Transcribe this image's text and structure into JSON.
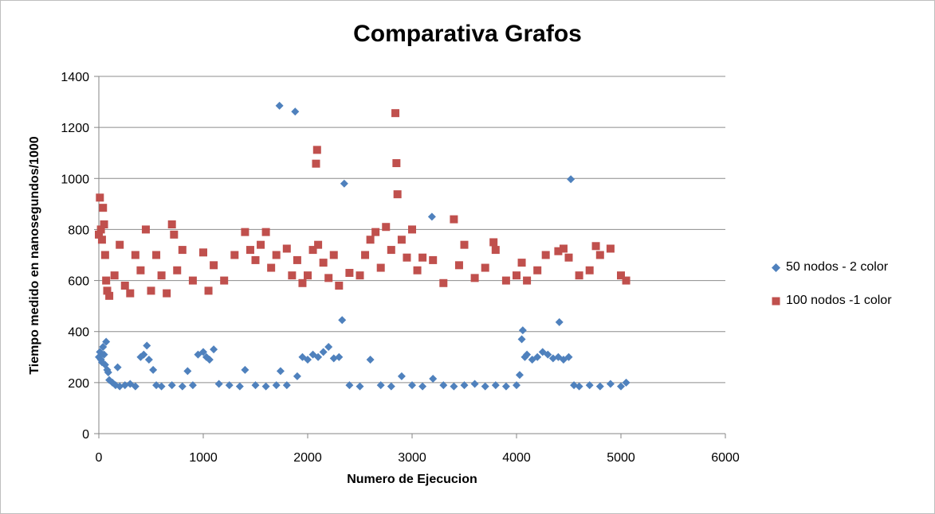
{
  "chart_data": {
    "type": "scatter",
    "title": "Comparativa Grafos",
    "xlabel": "Numero de Ejecucion",
    "ylabel": "Tiempo medido en nanosegundos/1000",
    "xlim": [
      0,
      6000
    ],
    "ylim": [
      0,
      1400
    ],
    "xticks": [
      0,
      1000,
      2000,
      3000,
      4000,
      5000,
      6000
    ],
    "yticks": [
      0,
      200,
      400,
      600,
      800,
      1000,
      1200,
      1400
    ],
    "grid": "horizontal",
    "legend_position": "right",
    "series": [
      {
        "name": "50 nodos - 2 color",
        "marker": "diamond",
        "color": "#4f81bd",
        "points": [
          [
            0,
            300
          ],
          [
            10,
            320
          ],
          [
            20,
            290
          ],
          [
            30,
            280
          ],
          [
            40,
            340
          ],
          [
            50,
            310
          ],
          [
            60,
            270
          ],
          [
            70,
            360
          ],
          [
            80,
            250
          ],
          [
            90,
            240
          ],
          [
            100,
            210
          ],
          [
            130,
            200
          ],
          [
            160,
            190
          ],
          [
            180,
            260
          ],
          [
            200,
            185
          ],
          [
            250,
            190
          ],
          [
            300,
            195
          ],
          [
            350,
            185
          ],
          [
            400,
            300
          ],
          [
            430,
            310
          ],
          [
            460,
            345
          ],
          [
            480,
            290
          ],
          [
            520,
            250
          ],
          [
            550,
            190
          ],
          [
            600,
            185
          ],
          [
            700,
            190
          ],
          [
            800,
            185
          ],
          [
            850,
            245
          ],
          [
            900,
            190
          ],
          [
            950,
            310
          ],
          [
            1000,
            320
          ],
          [
            1030,
            300
          ],
          [
            1060,
            290
          ],
          [
            1100,
            330
          ],
          [
            1150,
            195
          ],
          [
            1250,
            190
          ],
          [
            1350,
            185
          ],
          [
            1400,
            250
          ],
          [
            1500,
            190
          ],
          [
            1600,
            185
          ],
          [
            1700,
            190
          ],
          [
            1730,
            1285
          ],
          [
            1740,
            245
          ],
          [
            1800,
            190
          ],
          [
            1880,
            1262
          ],
          [
            1900,
            225
          ],
          [
            1950,
            300
          ],
          [
            2000,
            290
          ],
          [
            2050,
            310
          ],
          [
            2100,
            300
          ],
          [
            2150,
            320
          ],
          [
            2200,
            340
          ],
          [
            2250,
            295
          ],
          [
            2300,
            300
          ],
          [
            2330,
            445
          ],
          [
            2350,
            980
          ],
          [
            2400,
            190
          ],
          [
            2500,
            185
          ],
          [
            2600,
            290
          ],
          [
            2700,
            190
          ],
          [
            2800,
            185
          ],
          [
            2900,
            225
          ],
          [
            3000,
            190
          ],
          [
            3100,
            185
          ],
          [
            3190,
            850
          ],
          [
            3200,
            215
          ],
          [
            3300,
            190
          ],
          [
            3400,
            185
          ],
          [
            3500,
            190
          ],
          [
            3600,
            195
          ],
          [
            3700,
            185
          ],
          [
            3800,
            190
          ],
          [
            3900,
            185
          ],
          [
            4000,
            190
          ],
          [
            4030,
            230
          ],
          [
            4050,
            370
          ],
          [
            4060,
            405
          ],
          [
            4080,
            300
          ],
          [
            4100,
            310
          ],
          [
            4150,
            290
          ],
          [
            4200,
            300
          ],
          [
            4250,
            320
          ],
          [
            4300,
            310
          ],
          [
            4350,
            295
          ],
          [
            4400,
            300
          ],
          [
            4410,
            437
          ],
          [
            4450,
            290
          ],
          [
            4500,
            300
          ],
          [
            4520,
            997
          ],
          [
            4550,
            190
          ],
          [
            4600,
            185
          ],
          [
            4700,
            190
          ],
          [
            4800,
            185
          ],
          [
            4900,
            195
          ],
          [
            5000,
            185
          ],
          [
            5050,
            200
          ]
        ]
      },
      {
        "name": "100 nodos -1 color",
        "marker": "square",
        "color": "#c0504d",
        "points": [
          [
            0,
            780
          ],
          [
            10,
            925
          ],
          [
            20,
            800
          ],
          [
            30,
            760
          ],
          [
            40,
            885
          ],
          [
            50,
            820
          ],
          [
            60,
            700
          ],
          [
            70,
            600
          ],
          [
            80,
            560
          ],
          [
            100,
            540
          ],
          [
            150,
            620
          ],
          [
            200,
            740
          ],
          [
            250,
            580
          ],
          [
            300,
            550
          ],
          [
            350,
            700
          ],
          [
            400,
            640
          ],
          [
            450,
            800
          ],
          [
            500,
            560
          ],
          [
            550,
            700
          ],
          [
            600,
            620
          ],
          [
            650,
            550
          ],
          [
            700,
            820
          ],
          [
            720,
            780
          ],
          [
            750,
            640
          ],
          [
            800,
            720
          ],
          [
            900,
            600
          ],
          [
            1000,
            710
          ],
          [
            1050,
            560
          ],
          [
            1100,
            660
          ],
          [
            1200,
            600
          ],
          [
            1300,
            700
          ],
          [
            1400,
            790
          ],
          [
            1450,
            720
          ],
          [
            1500,
            680
          ],
          [
            1550,
            740
          ],
          [
            1600,
            790
          ],
          [
            1650,
            650
          ],
          [
            1700,
            700
          ],
          [
            1800,
            725
          ],
          [
            1850,
            620
          ],
          [
            1900,
            680
          ],
          [
            1950,
            590
          ],
          [
            2000,
            620
          ],
          [
            2050,
            720
          ],
          [
            2080,
            1058
          ],
          [
            2090,
            1112
          ],
          [
            2100,
            740
          ],
          [
            2150,
            670
          ],
          [
            2200,
            610
          ],
          [
            2250,
            700
          ],
          [
            2300,
            580
          ],
          [
            2400,
            630
          ],
          [
            2500,
            620
          ],
          [
            2550,
            700
          ],
          [
            2600,
            760
          ],
          [
            2650,
            790
          ],
          [
            2700,
            650
          ],
          [
            2750,
            810
          ],
          [
            2800,
            720
          ],
          [
            2840,
            1256
          ],
          [
            2850,
            1060
          ],
          [
            2860,
            938
          ],
          [
            2900,
            760
          ],
          [
            2950,
            690
          ],
          [
            3000,
            800
          ],
          [
            3050,
            640
          ],
          [
            3100,
            690
          ],
          [
            3200,
            680
          ],
          [
            3300,
            590
          ],
          [
            3400,
            840
          ],
          [
            3450,
            660
          ],
          [
            3500,
            740
          ],
          [
            3600,
            610
          ],
          [
            3700,
            650
          ],
          [
            3780,
            750
          ],
          [
            3800,
            720
          ],
          [
            3900,
            600
          ],
          [
            4000,
            620
          ],
          [
            4050,
            670
          ],
          [
            4100,
            600
          ],
          [
            4200,
            640
          ],
          [
            4280,
            700
          ],
          [
            4400,
            715
          ],
          [
            4450,
            725
          ],
          [
            4500,
            690
          ],
          [
            4600,
            620
          ],
          [
            4700,
            640
          ],
          [
            4760,
            735
          ],
          [
            4800,
            700
          ],
          [
            4900,
            725
          ],
          [
            5000,
            620
          ],
          [
            5050,
            600
          ]
        ]
      }
    ]
  }
}
